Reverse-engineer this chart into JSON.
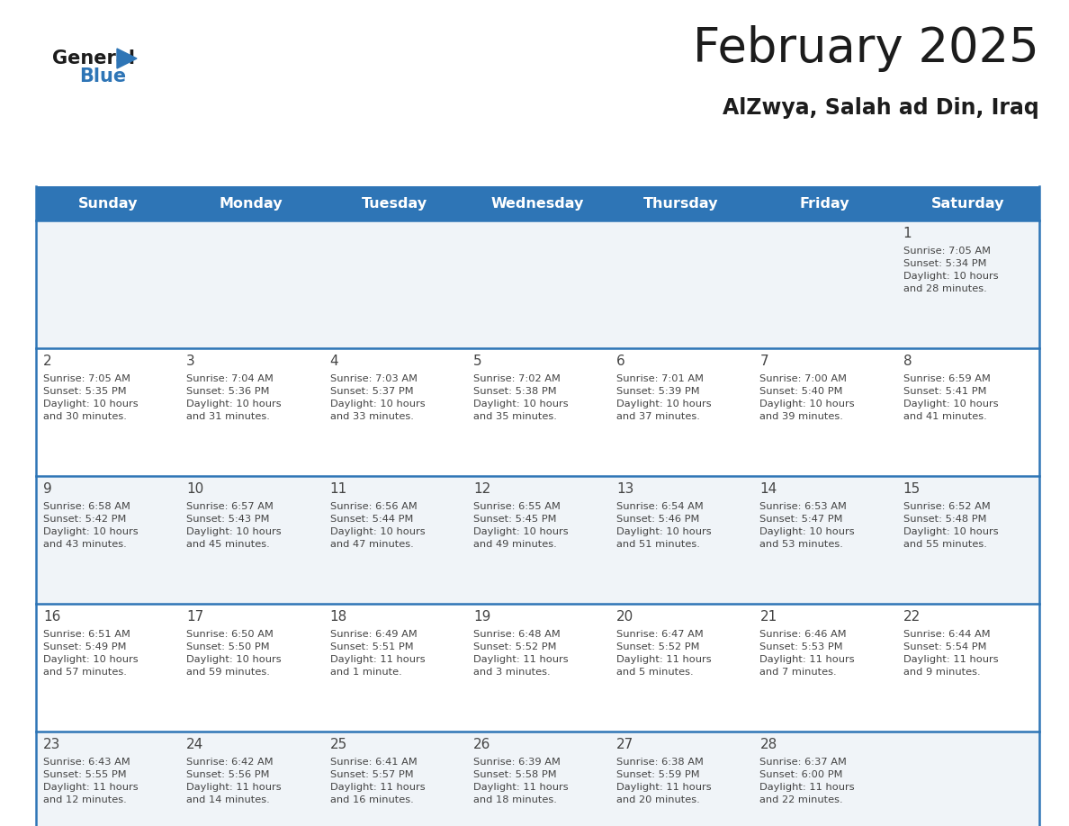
{
  "title": "February 2025",
  "subtitle": "AlZwya, Salah ad Din, Iraq",
  "header_bg": "#2E75B6",
  "header_text_color": "#FFFFFF",
  "day_headers": [
    "Sunday",
    "Monday",
    "Tuesday",
    "Wednesday",
    "Thursday",
    "Friday",
    "Saturday"
  ],
  "row_bg_colors": [
    "#F0F4F8",
    "#FFFFFF",
    "#F0F4F8",
    "#FFFFFF",
    "#F0F4F8"
  ],
  "cell_border_color": "#2E75B6",
  "day_number_color": "#444444",
  "cell_text_color": "#444444",
  "calendar_data": {
    "1": {
      "sunrise": "7:05 AM",
      "sunset": "5:34 PM",
      "daylight": "10 hours\nand 28 minutes."
    },
    "2": {
      "sunrise": "7:05 AM",
      "sunset": "5:35 PM",
      "daylight": "10 hours\nand 30 minutes."
    },
    "3": {
      "sunrise": "7:04 AM",
      "sunset": "5:36 PM",
      "daylight": "10 hours\nand 31 minutes."
    },
    "4": {
      "sunrise": "7:03 AM",
      "sunset": "5:37 PM",
      "daylight": "10 hours\nand 33 minutes."
    },
    "5": {
      "sunrise": "7:02 AM",
      "sunset": "5:38 PM",
      "daylight": "10 hours\nand 35 minutes."
    },
    "6": {
      "sunrise": "7:01 AM",
      "sunset": "5:39 PM",
      "daylight": "10 hours\nand 37 minutes."
    },
    "7": {
      "sunrise": "7:00 AM",
      "sunset": "5:40 PM",
      "daylight": "10 hours\nand 39 minutes."
    },
    "8": {
      "sunrise": "6:59 AM",
      "sunset": "5:41 PM",
      "daylight": "10 hours\nand 41 minutes."
    },
    "9": {
      "sunrise": "6:58 AM",
      "sunset": "5:42 PM",
      "daylight": "10 hours\nand 43 minutes."
    },
    "10": {
      "sunrise": "6:57 AM",
      "sunset": "5:43 PM",
      "daylight": "10 hours\nand 45 minutes."
    },
    "11": {
      "sunrise": "6:56 AM",
      "sunset": "5:44 PM",
      "daylight": "10 hours\nand 47 minutes."
    },
    "12": {
      "sunrise": "6:55 AM",
      "sunset": "5:45 PM",
      "daylight": "10 hours\nand 49 minutes."
    },
    "13": {
      "sunrise": "6:54 AM",
      "sunset": "5:46 PM",
      "daylight": "10 hours\nand 51 minutes."
    },
    "14": {
      "sunrise": "6:53 AM",
      "sunset": "5:47 PM",
      "daylight": "10 hours\nand 53 minutes."
    },
    "15": {
      "sunrise": "6:52 AM",
      "sunset": "5:48 PM",
      "daylight": "10 hours\nand 55 minutes."
    },
    "16": {
      "sunrise": "6:51 AM",
      "sunset": "5:49 PM",
      "daylight": "10 hours\nand 57 minutes."
    },
    "17": {
      "sunrise": "6:50 AM",
      "sunset": "5:50 PM",
      "daylight": "10 hours\nand 59 minutes."
    },
    "18": {
      "sunrise": "6:49 AM",
      "sunset": "5:51 PM",
      "daylight": "11 hours\nand 1 minute."
    },
    "19": {
      "sunrise": "6:48 AM",
      "sunset": "5:52 PM",
      "daylight": "11 hours\nand 3 minutes."
    },
    "20": {
      "sunrise": "6:47 AM",
      "sunset": "5:52 PM",
      "daylight": "11 hours\nand 5 minutes."
    },
    "21": {
      "sunrise": "6:46 AM",
      "sunset": "5:53 PM",
      "daylight": "11 hours\nand 7 minutes."
    },
    "22": {
      "sunrise": "6:44 AM",
      "sunset": "5:54 PM",
      "daylight": "11 hours\nand 9 minutes."
    },
    "23": {
      "sunrise": "6:43 AM",
      "sunset": "5:55 PM",
      "daylight": "11 hours\nand 12 minutes."
    },
    "24": {
      "sunrise": "6:42 AM",
      "sunset": "5:56 PM",
      "daylight": "11 hours\nand 14 minutes."
    },
    "25": {
      "sunrise": "6:41 AM",
      "sunset": "5:57 PM",
      "daylight": "11 hours\nand 16 minutes."
    },
    "26": {
      "sunrise": "6:39 AM",
      "sunset": "5:58 PM",
      "daylight": "11 hours\nand 18 minutes."
    },
    "27": {
      "sunrise": "6:38 AM",
      "sunset": "5:59 PM",
      "daylight": "11 hours\nand 20 minutes."
    },
    "28": {
      "sunrise": "6:37 AM",
      "sunset": "6:00 PM",
      "daylight": "11 hours\nand 22 minutes."
    }
  },
  "weeks": [
    [
      null,
      null,
      null,
      null,
      null,
      null,
      1
    ],
    [
      2,
      3,
      4,
      5,
      6,
      7,
      8
    ],
    [
      9,
      10,
      11,
      12,
      13,
      14,
      15
    ],
    [
      16,
      17,
      18,
      19,
      20,
      21,
      22
    ],
    [
      23,
      24,
      25,
      26,
      27,
      28,
      null
    ]
  ]
}
